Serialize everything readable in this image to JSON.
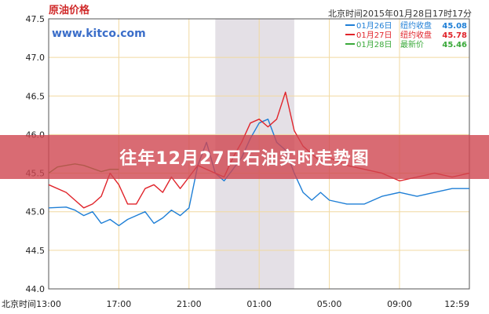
{
  "chart_data": {
    "type": "line",
    "title": "原油价格",
    "header_time": "北京时间2015年01月28日17时17分",
    "watermark": "www.kitco.com",
    "xlabel": "北京时间",
    "x_ticks": [
      "13:00",
      "17:00",
      "21:00",
      "01:00",
      "05:00",
      "09:00",
      "12:59"
    ],
    "y_ticks": [
      "44.0",
      "44.5",
      "45.0",
      "45.5",
      "46.0",
      "46.5",
      "47.0",
      "47.5"
    ],
    "ylim": [
      44.0,
      47.5
    ],
    "grid": true,
    "shaded_region": [
      "22:30",
      "03:00"
    ],
    "legend_position": "top-right",
    "legend": [
      {
        "date": "01月26日",
        "label": "纽约收盘",
        "value": "45.08",
        "color": "#1f7fd6"
      },
      {
        "date": "01月27日",
        "label": "纽约收盘",
        "value": "45.78",
        "color": "#e0242b"
      },
      {
        "date": "01月28日",
        "label": "最新价",
        "value": "45.46",
        "color": "#3aa93a"
      }
    ],
    "series": [
      {
        "name": "01月26日",
        "color": "#1f7fd6",
        "x": [
          "13:00",
          "14:00",
          "14:30",
          "15:00",
          "15:30",
          "16:00",
          "16:30",
          "17:00",
          "17:30",
          "18:00",
          "18:30",
          "19:00",
          "19:30",
          "20:00",
          "20:30",
          "21:00",
          "21:30",
          "22:00",
          "22:30",
          "23:00",
          "23:30",
          "00:00",
          "00:30",
          "01:00",
          "01:30",
          "02:00",
          "02:30",
          "03:00",
          "03:30",
          "04:00",
          "04:30",
          "05:00",
          "06:00",
          "07:00",
          "08:00",
          "09:00",
          "10:00",
          "11:00",
          "12:00",
          "12:59"
        ],
        "values": [
          45.05,
          45.06,
          45.02,
          44.95,
          45.0,
          44.85,
          44.9,
          44.82,
          44.9,
          44.95,
          45.0,
          44.85,
          44.92,
          45.02,
          44.95,
          45.05,
          45.6,
          45.9,
          45.5,
          45.4,
          45.55,
          45.7,
          45.95,
          46.15,
          46.2,
          45.9,
          45.8,
          45.5,
          45.25,
          45.15,
          45.25,
          45.15,
          45.1,
          45.1,
          45.2,
          45.25,
          45.2,
          45.25,
          45.3,
          45.3
        ]
      },
      {
        "name": "01月27日",
        "color": "#e0242b",
        "x": [
          "13:00",
          "14:00",
          "14:30",
          "15:00",
          "15:30",
          "16:00",
          "16:30",
          "17:00",
          "17:30",
          "18:00",
          "18:30",
          "19:00",
          "19:30",
          "20:00",
          "20:30",
          "21:00",
          "21:30",
          "22:00",
          "22:30",
          "23:00",
          "23:30",
          "00:00",
          "00:30",
          "01:00",
          "01:30",
          "02:00",
          "02:30",
          "03:00",
          "03:30",
          "04:00",
          "04:30",
          "05:00",
          "06:00",
          "07:00",
          "08:00",
          "09:00",
          "10:00",
          "11:00",
          "12:00",
          "12:59"
        ],
        "values": [
          45.35,
          45.25,
          45.15,
          45.05,
          45.1,
          45.2,
          45.5,
          45.35,
          45.1,
          45.1,
          45.3,
          45.35,
          45.25,
          45.45,
          45.3,
          45.45,
          45.6,
          45.55,
          45.5,
          45.45,
          45.7,
          45.9,
          46.15,
          46.2,
          46.1,
          46.2,
          46.55,
          46.05,
          45.85,
          45.75,
          45.65,
          45.7,
          45.6,
          45.55,
          45.5,
          45.4,
          45.45,
          45.5,
          45.45,
          45.5
        ]
      },
      {
        "name": "01月28日",
        "color": "#3aa93a",
        "x": [
          "13:00",
          "13:30",
          "14:00",
          "14:30",
          "15:00",
          "15:30",
          "16:00",
          "16:30",
          "17:00"
        ],
        "values": [
          45.5,
          45.58,
          45.6,
          45.62,
          45.6,
          45.56,
          45.52,
          45.55,
          45.55
        ]
      }
    ]
  },
  "banner_text": "往年12月27日石油实时走势图"
}
